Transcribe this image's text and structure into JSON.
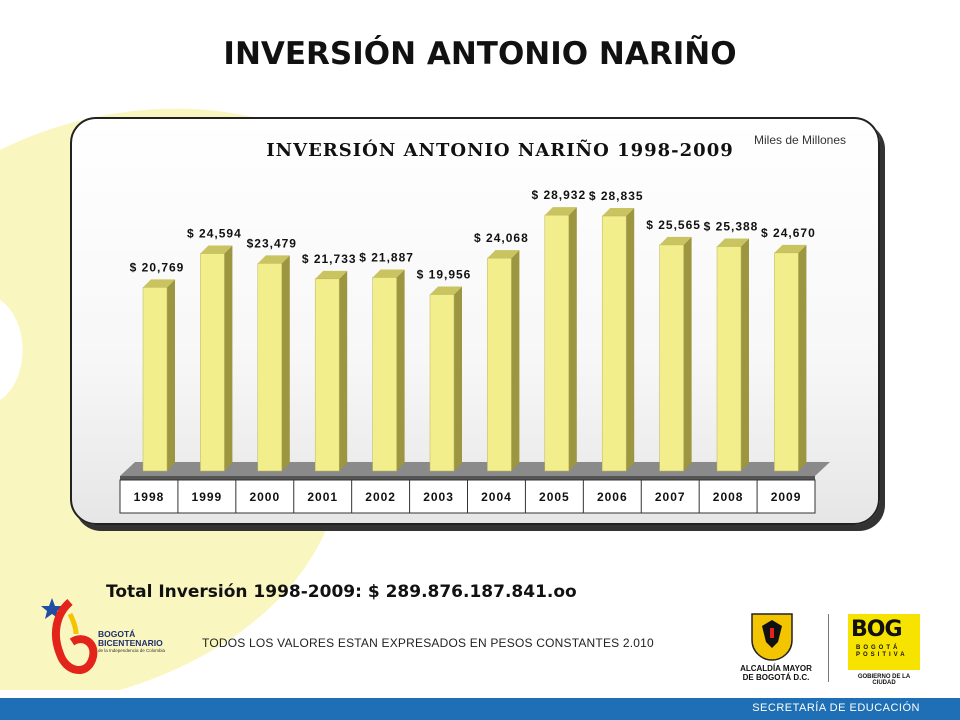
{
  "page": {
    "title": "INVERSIÓN ANTONIO NARIÑO",
    "total_label": "Total Inversión 1998-2009:  $ 289.876.187.841.oo",
    "note": "TODOS LOS VALORES ESTAN EXPRESADOS EN PESOS CONSTANTES 2.010",
    "footer": "SECRETARÍA DE EDUCACIÓN"
  },
  "logos": {
    "left_line1": "BOGOTÁ",
    "left_line2": "BICENTENARIO",
    "left_line3": "de la Independencia de Colombia",
    "alcaldia_line1": "ALCALDÍA MAYOR",
    "alcaldia_line2": "DE BOGOTÁ D.C.",
    "bog": "BOG",
    "bog_sub": "BOGOTÁ POSITIVA",
    "bog_gob": "GOBIERNO DE LA CIUDAD"
  },
  "colors": {
    "bar_front": "#f2ee8c",
    "bar_side": "#9c9640",
    "bar_top": "#c9c460",
    "footer_bar": "#1e6fb5",
    "deco_yellow": "#f7f2a0"
  },
  "chart_data": {
    "type": "bar",
    "title": "INVERSIÓN ANTONIO NARIÑO 1998-2009",
    "unit_label": "Miles de Millones",
    "categories": [
      "1998",
      "1999",
      "2000",
      "2001",
      "2002",
      "2003",
      "2004",
      "2005",
      "2006",
      "2007",
      "2008",
      "2009"
    ],
    "values": [
      20769,
      24594,
      23479,
      21733,
      21887,
      19956,
      24068,
      28932,
      28835,
      25565,
      25388,
      24670
    ],
    "labels": [
      "$ 20,769",
      "$ 24,594",
      "$23,479",
      "$ 21,733",
      "$ 21,887",
      "$ 19,956",
      "$ 24,068",
      "$ 28,932",
      "$ 28,835",
      "$ 25,565",
      "$ 25,388",
      "$ 24,670"
    ],
    "ylim": [
      0,
      30000
    ],
    "grid": false,
    "legend": "none"
  }
}
